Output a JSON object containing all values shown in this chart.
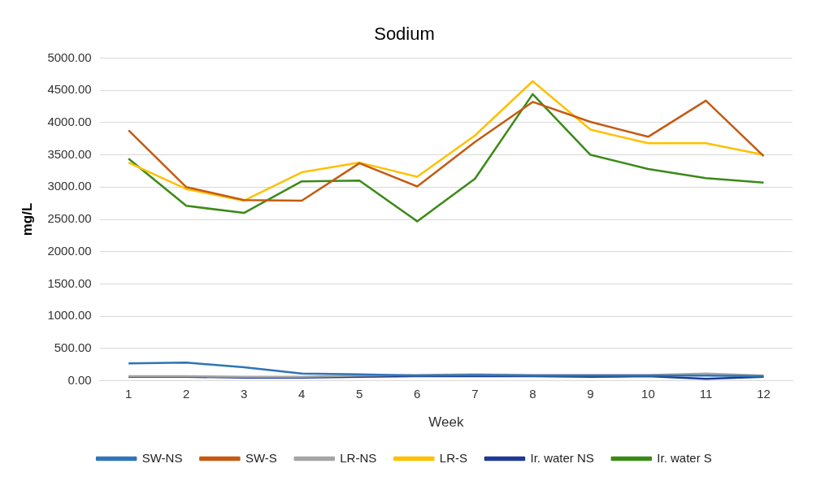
{
  "chart_data": {
    "type": "line",
    "title": "Sodium",
    "xlabel": "Week",
    "ylabel": "mg/L",
    "categories": [
      "1",
      "2",
      "3",
      "4",
      "5",
      "6",
      "7",
      "8",
      "9",
      "10",
      "11",
      "12"
    ],
    "series": [
      {
        "name": "SW-NS",
        "color": "#2e75b6",
        "values": [
          270,
          280,
          210,
          110,
          100,
          80,
          90,
          80,
          80,
          80,
          80,
          70
        ]
      },
      {
        "name": "SW-S",
        "color": "#c55a11",
        "values": [
          3880,
          3000,
          2800,
          2790,
          3370,
          3010,
          3700,
          4320,
          4010,
          3780,
          4340,
          3480
        ]
      },
      {
        "name": "LR-NS",
        "color": "#a5a5a5",
        "values": [
          70,
          70,
          60,
          60,
          80,
          90,
          100,
          90,
          90,
          90,
          110,
          80
        ]
      },
      {
        "name": "LR-S",
        "color": "#ffc000",
        "values": [
          3380,
          2970,
          2790,
          3230,
          3380,
          3160,
          3800,
          4640,
          3890,
          3680,
          3680,
          3500
        ]
      },
      {
        "name": "Ir. water NS",
        "color": "#1f3a93",
        "values": [
          60,
          60,
          50,
          50,
          60,
          70,
          70,
          70,
          60,
          70,
          30,
          60
        ]
      },
      {
        "name": "Ir. water S",
        "color": "#3b8a17",
        "values": [
          3440,
          2710,
          2600,
          3090,
          3100,
          2470,
          3130,
          4440,
          3500,
          3280,
          3140,
          3070
        ]
      }
    ],
    "ylim": [
      0,
      5000
    ],
    "yticks": [
      {
        "value": 0,
        "label": "0.00"
      },
      {
        "value": 500,
        "label": "500.00"
      },
      {
        "value": 1000,
        "label": "1000.00"
      },
      {
        "value": 1500,
        "label": "1500.00"
      },
      {
        "value": 2000,
        "label": "2000.00"
      },
      {
        "value": 2500,
        "label": "2500.00"
      },
      {
        "value": 3000,
        "label": "3000.00"
      },
      {
        "value": 3500,
        "label": "3500.00"
      },
      {
        "value": 4000,
        "label": "4000.00"
      },
      {
        "value": 4500,
        "label": "4500.00"
      },
      {
        "value": 5000,
        "label": "5000.00"
      }
    ],
    "grid": "y",
    "legend": "bottom",
    "marker": "none",
    "line_style": "solid"
  }
}
